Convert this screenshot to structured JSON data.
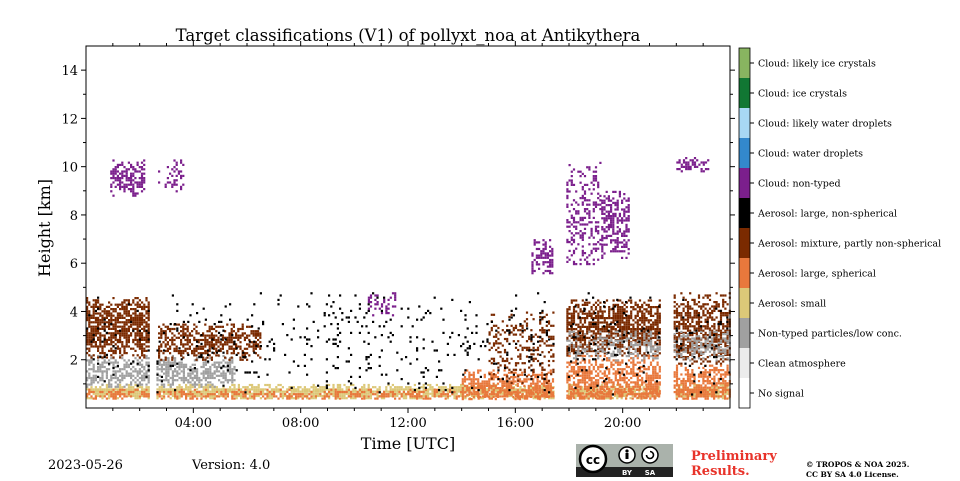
{
  "chart_data": {
    "type": "heatmap",
    "title": "Target classifications (V1) of pollyxt_noa at Antikythera",
    "xlabel": "Time [UTC]",
    "ylabel": "Height [km]",
    "xlim": [
      0,
      24
    ],
    "ylim": [
      0,
      15
    ],
    "x_ticks": [
      {
        "value": 4,
        "label": "04:00"
      },
      {
        "value": 8,
        "label": "08:00"
      },
      {
        "value": 12,
        "label": "12:00"
      },
      {
        "value": 16,
        "label": "16:00"
      },
      {
        "value": 20,
        "label": "20:00"
      }
    ],
    "y_ticks": [
      {
        "value": 2,
        "label": "2"
      },
      {
        "value": 4,
        "label": "4"
      },
      {
        "value": 6,
        "label": "6"
      },
      {
        "value": 8,
        "label": "8"
      },
      {
        "value": 10,
        "label": "10"
      },
      {
        "value": 12,
        "label": "12"
      },
      {
        "value": 14,
        "label": "14"
      }
    ],
    "grid": false,
    "data_gaps_hours": [
      [
        2.35,
        2.6
      ],
      [
        17.4,
        17.9
      ],
      [
        21.35,
        21.9
      ]
    ],
    "classes": [
      {
        "code": 0,
        "label": "No signal",
        "color": "#ffffff"
      },
      {
        "code": 1,
        "label": "Clean atmosphere",
        "color": "#ececec"
      },
      {
        "code": 2,
        "label": "Non-typed particles/low conc.",
        "color": "#a0a0a0"
      },
      {
        "code": 3,
        "label": "Aerosol: small",
        "color": "#dcc878"
      },
      {
        "code": 4,
        "label": "Aerosol: large, spherical",
        "color": "#e8783c"
      },
      {
        "code": 5,
        "label": "Aerosol: mixture, partly non-spherical",
        "color": "#7a2a00"
      },
      {
        "code": 6,
        "label": "Aerosol: large, non-spherical",
        "color": "#000000"
      },
      {
        "code": 7,
        "label": "Cloud: non-typed",
        "color": "#7b1f8c"
      },
      {
        "code": 8,
        "label": "Cloud: water droplets",
        "color": "#3388cc"
      },
      {
        "code": 9,
        "label": "Cloud: likely water droplets",
        "color": "#a8d8f4"
      },
      {
        "code": 10,
        "label": "Cloud: ice crystals",
        "color": "#117733"
      },
      {
        "code": 11,
        "label": "Cloud: likely ice crystals",
        "color": "#88b460"
      }
    ],
    "regions": [
      {
        "class": 3,
        "t0": 0,
        "t1": 24,
        "h0": 0.4,
        "h1": 1.0,
        "density": 0.85
      },
      {
        "class": 4,
        "t0": 0,
        "t1": 24,
        "h0": 0.4,
        "h1": 0.8,
        "density": 0.55
      },
      {
        "class": 2,
        "t0": 0,
        "t1": 5.5,
        "h0": 0.9,
        "h1": 2.2,
        "density": 0.6
      },
      {
        "class": 5,
        "t0": 0,
        "t1": 2.35,
        "h0": 2.1,
        "h1": 4.6,
        "density": 0.75
      },
      {
        "class": 5,
        "t0": 2.6,
        "t1": 6.5,
        "h0": 2.0,
        "h1": 3.5,
        "density": 0.55
      },
      {
        "class": 5,
        "t0": 17.9,
        "t1": 21.35,
        "h0": 2.2,
        "h1": 4.5,
        "density": 0.7
      },
      {
        "class": 4,
        "t0": 17.9,
        "t1": 21.35,
        "h0": 0.4,
        "h1": 2.2,
        "density": 0.65
      },
      {
        "class": 2,
        "t0": 17.9,
        "t1": 21.35,
        "h0": 2.0,
        "h1": 3.2,
        "density": 0.4
      },
      {
        "class": 5,
        "t0": 21.9,
        "t1": 24,
        "h0": 1.8,
        "h1": 4.8,
        "density": 0.6
      },
      {
        "class": 4,
        "t0": 21.9,
        "t1": 24,
        "h0": 0.4,
        "h1": 1.8,
        "density": 0.65
      },
      {
        "class": 2,
        "t0": 21.9,
        "t1": 24,
        "h0": 2.0,
        "h1": 3.2,
        "density": 0.45
      },
      {
        "class": 4,
        "t0": 14.0,
        "t1": 17.4,
        "h0": 0.4,
        "h1": 1.6,
        "density": 0.6
      },
      {
        "class": 5,
        "t0": 15.0,
        "t1": 17.4,
        "h0": 1.0,
        "h1": 4.0,
        "density": 0.25
      },
      {
        "class": 7,
        "t0": 0.9,
        "t1": 2.2,
        "h0": 8.8,
        "h1": 10.3,
        "density": 0.55
      },
      {
        "class": 7,
        "t0": 2.6,
        "t1": 3.6,
        "h0": 9.0,
        "h1": 10.3,
        "density": 0.25
      },
      {
        "class": 7,
        "t0": 10.5,
        "t1": 11.5,
        "h0": 3.8,
        "h1": 4.8,
        "density": 0.3
      },
      {
        "class": 7,
        "t0": 16.6,
        "t1": 17.4,
        "h0": 5.5,
        "h1": 7.0,
        "density": 0.5
      },
      {
        "class": 7,
        "t0": 17.9,
        "t1": 19.2,
        "h0": 6.0,
        "h1": 10.2,
        "density": 0.35
      },
      {
        "class": 7,
        "t0": 19.2,
        "t1": 20.2,
        "h0": 6.2,
        "h1": 9.0,
        "density": 0.55
      },
      {
        "class": 7,
        "t0": 22.0,
        "t1": 23.2,
        "h0": 9.8,
        "h1": 10.4,
        "density": 0.5
      },
      {
        "class": 6,
        "t0": 0,
        "t1": 24,
        "h0": 0.6,
        "h1": 4.8,
        "density": 0.05
      }
    ]
  },
  "colorbar_labels": [
    "Cloud: likely ice crystals",
    "Cloud: ice crystals",
    "Cloud: likely water droplets",
    "Cloud: water droplets",
    "Cloud: non-typed",
    "Aerosol: large, non-spherical",
    "Aerosol: mixture, partly non-spherical",
    "Aerosol: large, spherical",
    "Aerosol: small",
    "Non-typed particles/low conc.",
    "Clean atmosphere",
    "No signal"
  ],
  "footer": {
    "date": "2023-05-26",
    "version": "Version: 4.0",
    "preliminary_line1": "Preliminary",
    "preliminary_line2": "Results.",
    "copyright_line1": "© TROPOS & NOA 2025.",
    "copyright_line2": "CC BY SA 4.0 License.",
    "cc_badge": {
      "cc": "cc",
      "by": "BY",
      "sa": "SA"
    }
  }
}
